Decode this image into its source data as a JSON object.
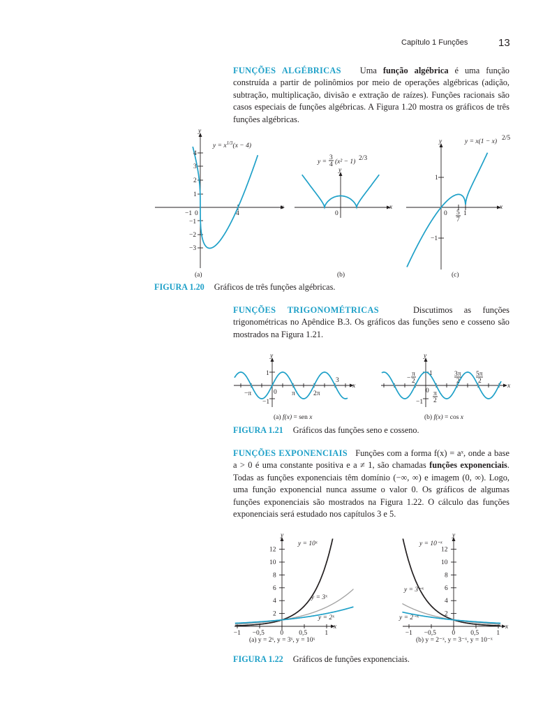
{
  "header": {
    "chapter": "Capítulo 1   Funções",
    "page_number": "13"
  },
  "alg": {
    "heading": "FUNÇÕES ALGÉBRICAS",
    "text_a": "Uma ",
    "bold": "função algébrica",
    "text_b": " é uma função construída a partir de polinômios por meio de operações algébricas (adição, subtração, multiplicação, divisão e extração de raízes). Funções racionais são casos especiais de funções algébricas. A Figura 1.20 mostra os gráficos de três funções algébricas."
  },
  "fig120": {
    "label": "FIGURA 1.20",
    "caption": "Gráficos de três funções algébricas.",
    "a": {
      "sub": "(a)",
      "eq": "y = x^{1/3}(x − 4)",
      "ticks_y": [
        "4",
        "3",
        "2",
        "1",
        "−1",
        "−2",
        "−3"
      ],
      "ticks_x": [
        "−1",
        "0",
        "4"
      ],
      "xlabel": "x",
      "ylabel": "y"
    },
    "b": {
      "sub": "(b)",
      "eq_left": "y =",
      "frac_num": "3",
      "frac_den": "4",
      "eq_right": "(x² − 1)",
      "exp": "2/3",
      "origin": "0",
      "xlabel": "x",
      "ylabel": "y"
    },
    "c": {
      "sub": "(c)",
      "eq": "y = x(1 − x)",
      "exp": "2/5",
      "ticks_y": [
        "1",
        "−1"
      ],
      "origin": "0",
      "frac_num": "5",
      "frac_den": "7",
      "tick_one": "1",
      "xlabel": "x",
      "ylabel": "y"
    }
  },
  "trig": {
    "heading": "FUNÇÕES TRIGONOMÉTRICAS",
    "text": "Discutimos as funções trigonométricas no Apêndice B.3. Os gráficos das funções seno e cosseno são mostrados na Figura 1.21."
  },
  "fig121": {
    "label": "FIGURA 1.21",
    "caption": "Gráficos das funções seno e cosseno.",
    "a": {
      "sub_pre": "(a)  ",
      "sub_fn": "f(x)",
      "sub_post": " = sen ",
      "sub_x": "x",
      "ticks": {
        "one": "1",
        "mone": "−1",
        "mpi": "−π",
        "zero": "0",
        "pi": "π",
        "twopi": "2π",
        "three": "3"
      },
      "xlabel": "x",
      "ylabel": "y"
    },
    "b": {
      "sub_pre": "(b)  ",
      "sub_fn": "f(x)",
      "sub_post": " = cos ",
      "sub_x": "x",
      "ticks": {
        "one": "1",
        "mone": "−1",
        "zero": "0",
        "mpi2_num": "π",
        "mpi2_den": "2",
        "mpi2_sign": "−",
        "pi2_num": "π",
        "pi2_den": "2",
        "tpi2_num": "3π",
        "tpi2_den": "2",
        "fpi2_num": "5π",
        "fpi2_den": "2"
      },
      "xlabel": "x",
      "ylabel": "y"
    }
  },
  "exp": {
    "heading": "FUNÇÕES EXPONENCIAIS",
    "line1": "Funções com a forma f(x) = aˣ, onde a base a > 0 é uma constante positiva e a ≠ 1, são chamadas ",
    "bold": "funções exponenciais",
    "line2": ". Todas as funções exponenciais têm domínio (−∞, ∞) e imagem (0, ∞). Logo, uma função exponencial nunca assume o valor 0. Os gráficos de algumas funções exponenciais são mostrados na Figura 1.22. O cálculo das funções exponenciais será estudado nos capítulos 3 e 5."
  },
  "fig122": {
    "label": "FIGURA 1.22",
    "caption": "Gráficos de funções exponenciais.",
    "a": {
      "sub": "(a)  y = 2ˣ, y = 3ˣ, y = 10ˣ",
      "l10": "y = 10ˣ",
      "l3": "y = 3ˣ",
      "l2": "y = 2ˣ",
      "ticks_y": [
        "12",
        "10",
        "8",
        "6",
        "4",
        "2"
      ],
      "ticks_x": [
        "−1",
        "−0,5",
        "0",
        "0,5",
        "1"
      ],
      "xlabel": "x",
      "ylabel": "y"
    },
    "b": {
      "sub": "(b)  y = 2⁻ˣ, y = 3⁻ˣ, y = 10⁻ˣ",
      "l10": "y = 10⁻ˣ",
      "l3": "y = 3⁻ˣ",
      "l2": "y = 2⁻ˣ",
      "ticks_y": [
        "12",
        "10",
        "8",
        "6",
        "4",
        "2"
      ],
      "ticks_x": [
        "−1",
        "−0,5",
        "0",
        "0,5",
        "1"
      ],
      "xlabel": "x",
      "ylabel": "y"
    }
  },
  "colors": {
    "accent": "#1ea0c8",
    "text": "#231f20",
    "gray": "#a0a0a0"
  }
}
